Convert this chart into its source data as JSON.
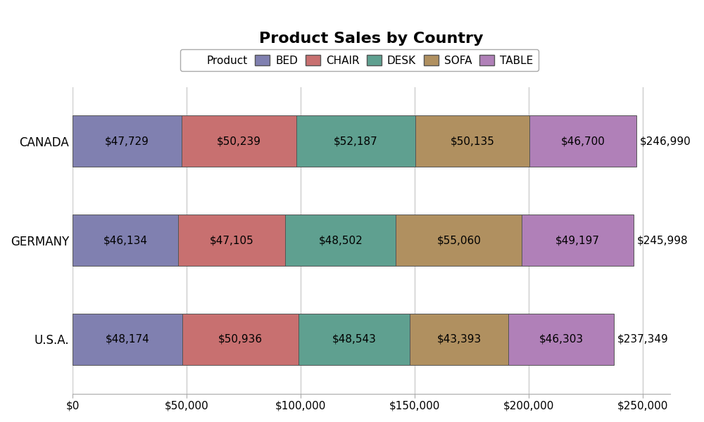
{
  "title": "Product Sales by Country",
  "countries_display_order": [
    "CANADA",
    "GERMANY",
    "U.S.A."
  ],
  "products": [
    "BED",
    "CHAIR",
    "DESK",
    "SOFA",
    "TABLE"
  ],
  "values": {
    "CANADA": [
      47729,
      50239,
      52187,
      50135,
      46700
    ],
    "GERMANY": [
      46134,
      47105,
      48502,
      55060,
      49197
    ],
    "U.S.A.": [
      48174,
      50936,
      48543,
      43393,
      46303
    ]
  },
  "totals": {
    "CANADA": 246990,
    "GERMANY": 245998,
    "U.S.A.": 237349
  },
  "colors": [
    "#8080b0",
    "#c87070",
    "#5fa090",
    "#b09060",
    "#b080b8"
  ],
  "edge_color": "#555555",
  "bar_height": 0.52,
  "xlim": [
    0,
    262000
  ],
  "xticks": [
    0,
    50000,
    100000,
    150000,
    200000,
    250000
  ],
  "background_color": "#ffffff",
  "legend_label": "Product",
  "title_fontsize": 16,
  "label_fontsize": 11,
  "tick_fontsize": 11,
  "ytick_fontsize": 12
}
